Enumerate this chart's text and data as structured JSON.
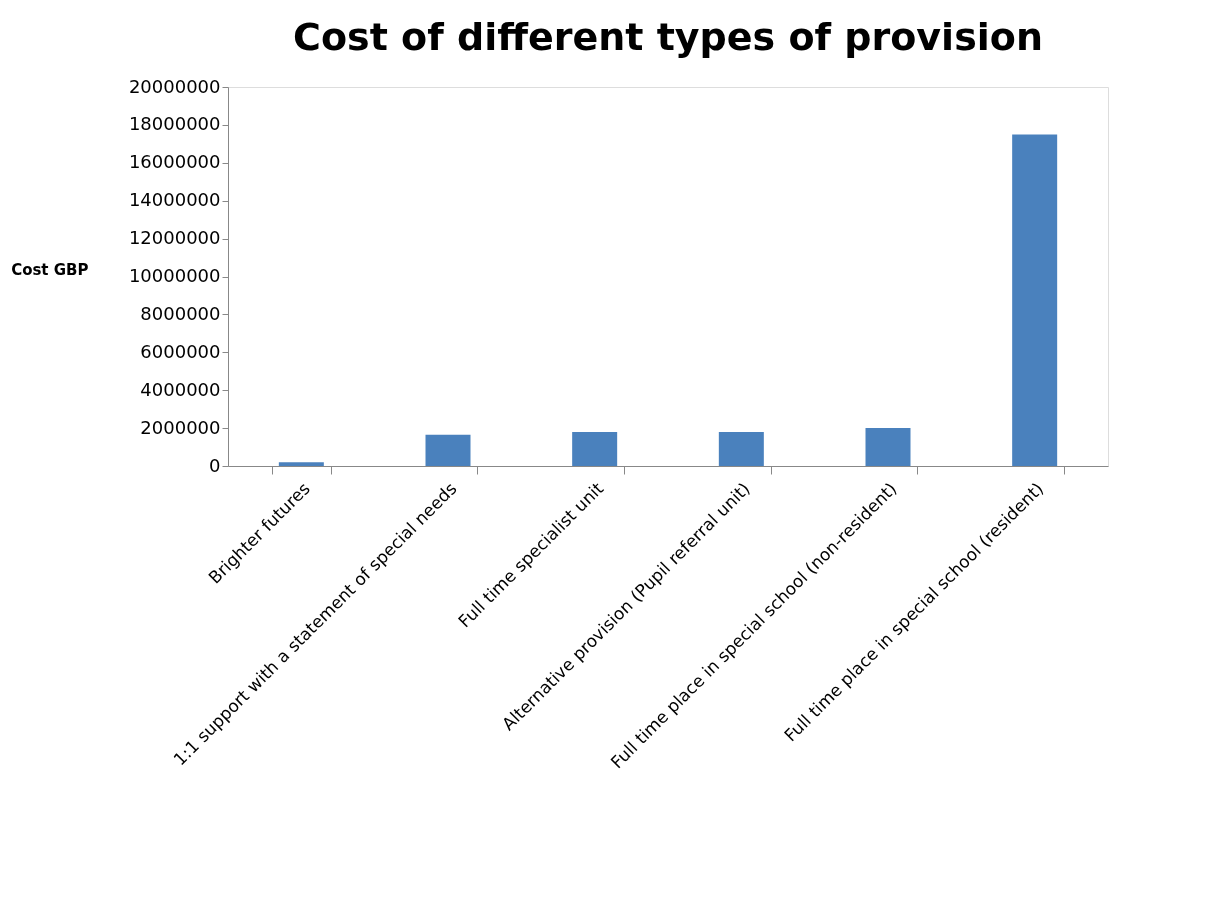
{
  "chart_data": {
    "type": "bar",
    "title": "Cost of different types of provision",
    "ylabel": "Cost GBP",
    "categories": [
      "Brighter futures",
      "1:1 support with a statement of special needs",
      "Full time specialist unit",
      "Alternative provision (Pupil referral unit)",
      "Full time place in special school (non-resident)",
      "Full time place in special school (resident)"
    ],
    "values": [
      200000,
      1650000,
      1800000,
      1800000,
      2000000,
      17500000
    ],
    "color": "#4a81bd",
    "ylim": [
      0,
      20000000
    ],
    "yticks": [
      0,
      2000000,
      4000000,
      6000000,
      8000000,
      10000000,
      12000000,
      14000000,
      16000000,
      18000000,
      20000000
    ],
    "grid": false
  }
}
